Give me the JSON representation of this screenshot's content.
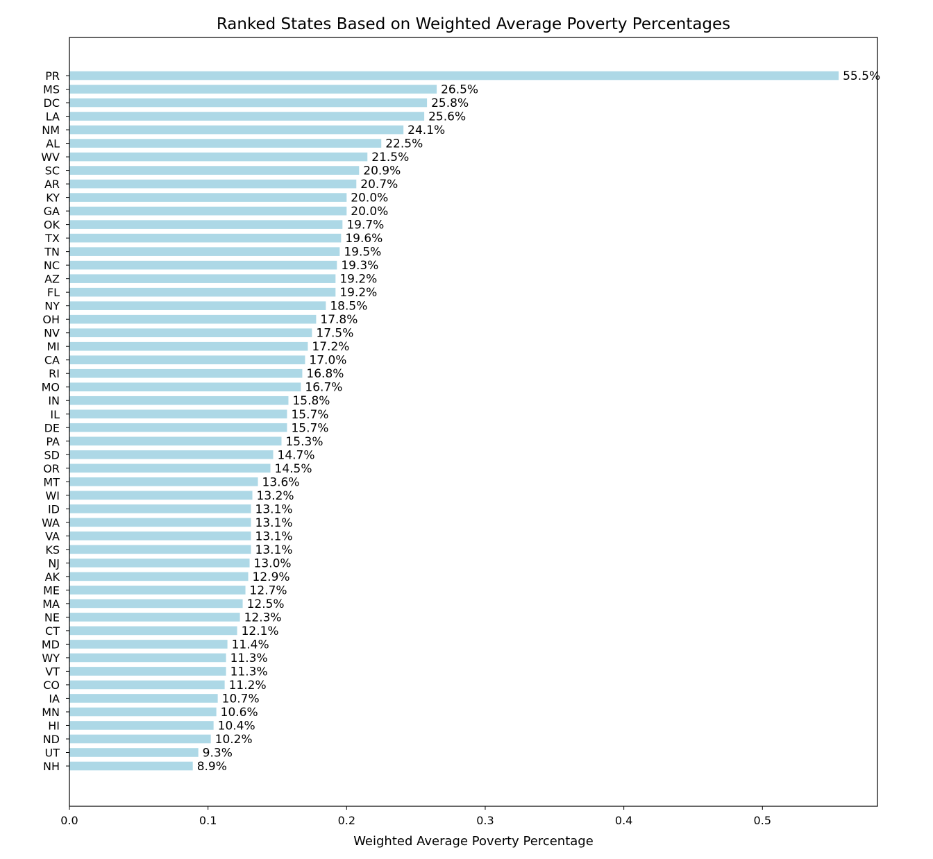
{
  "chart_data": {
    "type": "bar",
    "orientation": "horizontal",
    "title": "Ranked States Based on Weighted Average Poverty Percentages",
    "xlabel": "Weighted Average Poverty Percentage",
    "ylabel": "",
    "xlim": [
      0,
      0.583
    ],
    "x_ticks": [
      0.0,
      0.1,
      0.2,
      0.3,
      0.4,
      0.5
    ],
    "x_tick_labels": [
      "0.0",
      "0.1",
      "0.2",
      "0.3",
      "0.4",
      "0.5"
    ],
    "grid": false,
    "bar_color": "#add8e6",
    "categories": [
      "PR",
      "MS",
      "DC",
      "LA",
      "NM",
      "AL",
      "WV",
      "SC",
      "AR",
      "KY",
      "GA",
      "OK",
      "TX",
      "TN",
      "NC",
      "AZ",
      "FL",
      "NY",
      "OH",
      "NV",
      "MI",
      "CA",
      "RI",
      "MO",
      "IN",
      "IL",
      "DE",
      "PA",
      "SD",
      "OR",
      "MT",
      "WI",
      "ID",
      "WA",
      "VA",
      "KS",
      "NJ",
      "AK",
      "ME",
      "MA",
      "NE",
      "CT",
      "MD",
      "WY",
      "VT",
      "CO",
      "IA",
      "MN",
      "HI",
      "ND",
      "UT",
      "NH"
    ],
    "values": [
      0.555,
      0.265,
      0.258,
      0.256,
      0.241,
      0.225,
      0.215,
      0.209,
      0.207,
      0.2,
      0.2,
      0.197,
      0.196,
      0.195,
      0.193,
      0.192,
      0.192,
      0.185,
      0.178,
      0.175,
      0.172,
      0.17,
      0.168,
      0.167,
      0.158,
      0.157,
      0.157,
      0.153,
      0.147,
      0.145,
      0.136,
      0.132,
      0.131,
      0.131,
      0.131,
      0.131,
      0.13,
      0.129,
      0.127,
      0.125,
      0.123,
      0.121,
      0.114,
      0.113,
      0.113,
      0.112,
      0.107,
      0.106,
      0.104,
      0.102,
      0.093,
      0.089
    ],
    "data_labels": [
      "55.5%",
      "26.5%",
      "25.8%",
      "25.6%",
      "24.1%",
      "22.5%",
      "21.5%",
      "20.9%",
      "20.7%",
      "20.0%",
      "20.0%",
      "19.7%",
      "19.6%",
      "19.5%",
      "19.3%",
      "19.2%",
      "19.2%",
      "18.5%",
      "17.8%",
      "17.5%",
      "17.2%",
      "17.0%",
      "16.8%",
      "16.7%",
      "15.8%",
      "15.7%",
      "15.7%",
      "15.3%",
      "14.7%",
      "14.5%",
      "13.6%",
      "13.2%",
      "13.1%",
      "13.1%",
      "13.1%",
      "13.1%",
      "13.0%",
      "12.9%",
      "12.7%",
      "12.5%",
      "12.3%",
      "12.1%",
      "11.4%",
      "11.3%",
      "11.3%",
      "11.2%",
      "10.7%",
      "10.6%",
      "10.4%",
      "10.2%",
      "9.3%",
      "8.9%"
    ]
  }
}
